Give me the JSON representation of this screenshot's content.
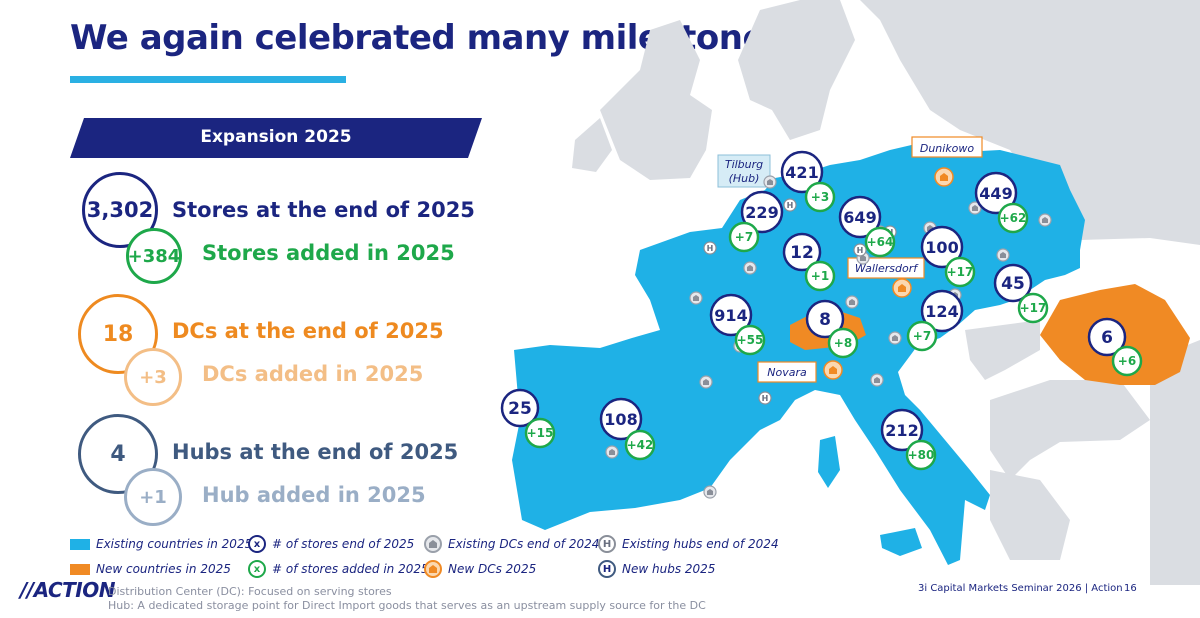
{
  "header": {
    "title": "We again celebrated many milestones"
  },
  "section": {
    "label": "Expansion 2025"
  },
  "kpis": [
    {
      "value": "3,302",
      "label": "Stores at the end of 2025",
      "color": "#1b2580"
    },
    {
      "value": "+384",
      "label": "Stores added in 2025",
      "color": "#1ea84a"
    },
    {
      "value": "18",
      "label": "DCs at the end of 2025",
      "color": "#ee8a20"
    },
    {
      "value": "+3",
      "label": "DCs added in 2025",
      "color": "#f3be86"
    },
    {
      "value": "4",
      "label": "Hubs at the end of 2025",
      "color": "#3f5a80"
    },
    {
      "value": "+1",
      "label": "Hub added in 2025",
      "color": "#9aaec6"
    }
  ],
  "map": {
    "colors": {
      "existing": "#1fb1e6",
      "new": "#f08a24",
      "stores": "#1b2580",
      "added": "#1ea84a",
      "base": "#dadde2"
    },
    "places": [
      "Tilburg\n(Hub)",
      "Dunikowo",
      "Wallersdorf",
      "Novara"
    ],
    "stores": [
      "421",
      "229",
      "649",
      "449",
      "12",
      "100",
      "45",
      "914",
      "8",
      "124",
      "6",
      "25",
      "108",
      "212"
    ],
    "added": [
      "+3",
      "+7",
      "+64",
      "+62",
      "+1",
      "+17",
      "+17",
      "+55",
      "+8",
      "+7",
      "+6",
      "+15",
      "+42",
      "+80"
    ]
  },
  "legend": {
    "existing_countries": "Existing countries in 2025",
    "new_countries": "New countries in 2025",
    "stores_end": "# of stores end of 2025",
    "stores_added": "# of stores added in 2025",
    "existing_dcs": "Existing DCs end of 2024",
    "new_dcs": "New DCs 2025",
    "existing_hubs": "Existing hubs end of 2024",
    "new_hubs": "New hubs 2025",
    "symbol_x": "x",
    "symbol_h": "H"
  },
  "footer": {
    "logo": "//ACTION",
    "note_dc": "Distribution Center (DC): Focused on serving stores",
    "note_hub": "Hub: A dedicated storage point for Direct Import goods that serves as an upstream supply source for the DC",
    "event": "3i Capital Markets Seminar 2026 | Action",
    "page": "16"
  }
}
